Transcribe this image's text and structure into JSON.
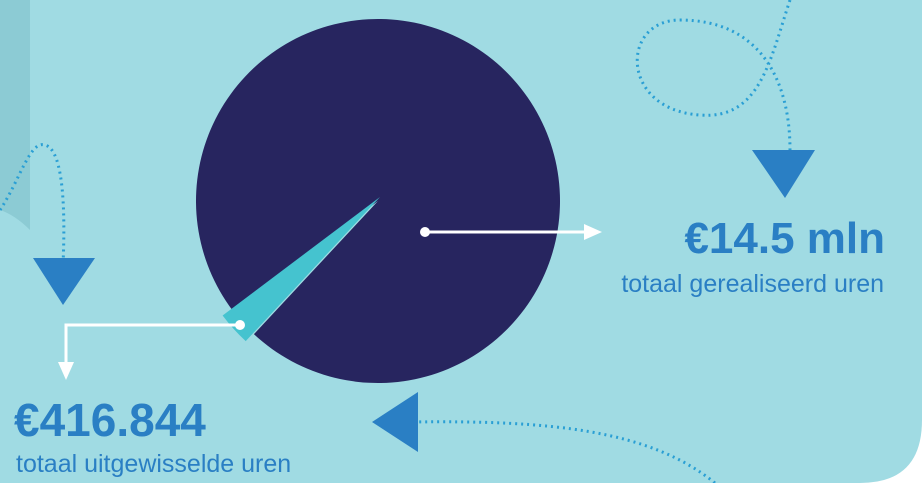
{
  "chart_data": {
    "type": "pie",
    "categories": [
      "totaal gerealiseerd uren",
      "totaal uitgewisselde uren"
    ],
    "values": [
      14500000,
      416844
    ],
    "value_labels": [
      "€14.5 mln",
      "€416.844"
    ],
    "colors": [
      "#27255f",
      "#45c3cf"
    ]
  }
}
